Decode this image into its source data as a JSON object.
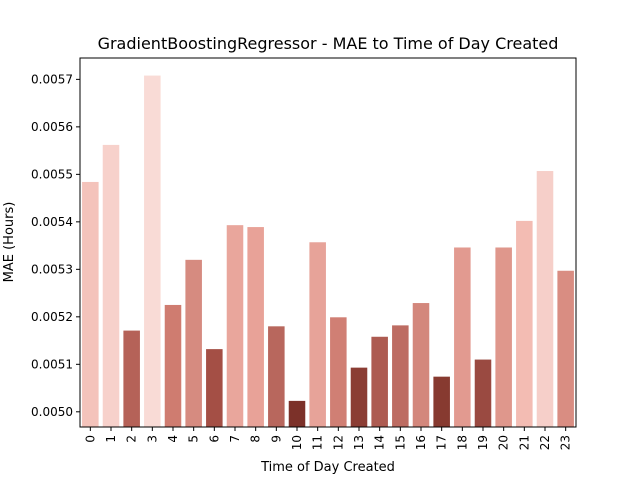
{
  "chart_data": {
    "type": "bar",
    "title": "GradientBoostingRegressor - MAE to Time of Day Created",
    "xlabel": "Time of Day Created",
    "ylabel": "MAE (Hours)",
    "categories": [
      "0",
      "1",
      "2",
      "3",
      "4",
      "5",
      "6",
      "7",
      "8",
      "9",
      "10",
      "11",
      "12",
      "13",
      "14",
      "15",
      "16",
      "17",
      "18",
      "19",
      "20",
      "21",
      "22",
      "23"
    ],
    "values": [
      0.005484,
      0.005562,
      0.005171,
      0.005708,
      0.005225,
      0.00532,
      0.005132,
      0.005393,
      0.005389,
      0.00518,
      0.005023,
      0.005357,
      0.005199,
      0.005093,
      0.005158,
      0.005182,
      0.005229,
      0.005074,
      0.005346,
      0.00511,
      0.005346,
      0.005402,
      0.005507,
      0.005297
    ],
    "colors": [
      "#f4c3bb",
      "#f7d1cb",
      "#b56258",
      "#f9dbd6",
      "#cf7c70",
      "#d68b80",
      "#a44f45",
      "#e9a69c",
      "#e8a298",
      "#b8675d",
      "#7c3129",
      "#e7a399",
      "#d07f74",
      "#8b3d34",
      "#ad5b51",
      "#bd6c62",
      "#d3877c",
      "#873a30",
      "#e29a90",
      "#9a4a41",
      "#df978c",
      "#f3bcb3",
      "#f6cfc9",
      "#d98d82"
    ],
    "yticks": [
      "0.0050",
      "0.0051",
      "0.0052",
      "0.0053",
      "0.0054",
      "0.0055",
      "0.0056",
      "0.0057"
    ],
    "ylim": [
      0.004968,
      0.005745
    ],
    "grid": false,
    "legend": "none"
  }
}
